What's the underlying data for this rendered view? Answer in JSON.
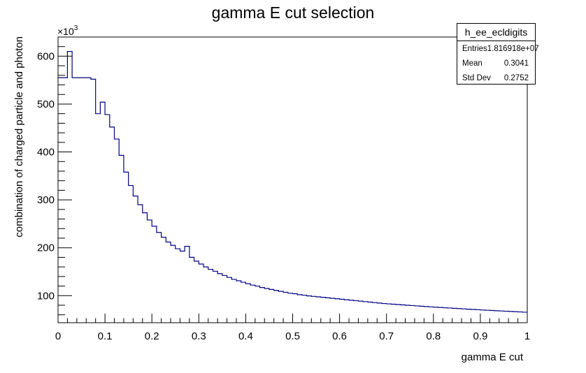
{
  "chart_data": {
    "type": "histogram",
    "title": "gamma E cut selection",
    "xlabel": "gamma E cut",
    "ylabel": "combination of charged particle and photon",
    "y_multiplier_label": "×10",
    "y_multiplier_exponent": "3",
    "xlim": [
      0,
      1
    ],
    "ylim": [
      43.5,
      640
    ],
    "x_ticks": [
      "0",
      "0.1",
      "0.2",
      "0.3",
      "0.4",
      "0.5",
      "0.6",
      "0.7",
      "0.8",
      "0.9",
      "1"
    ],
    "y_ticks": [
      "100",
      "200",
      "300",
      "400",
      "500",
      "600"
    ],
    "bin_width": 0.01,
    "values": [
      555,
      555,
      610,
      555,
      555,
      555,
      555,
      552,
      480,
      504,
      478,
      452,
      427,
      393,
      358,
      330,
      308,
      290,
      273,
      258,
      245,
      232,
      222,
      212,
      205,
      198,
      193,
      203,
      180,
      172,
      166,
      160,
      155,
      151,
      146,
      142,
      138,
      134,
      131,
      128,
      125,
      122,
      120,
      117,
      115,
      113,
      111,
      109,
      107,
      105,
      104,
      102,
      101,
      99.5,
      98.5,
      97.5,
      96.5,
      95.5,
      94.5,
      93.5,
      92.5,
      91.5,
      90.5,
      89.5,
      88.5,
      87.5,
      86.5,
      85.5,
      84.5,
      83.5,
      82.8,
      82.1,
      81.4,
      80.7,
      80.0,
      79.3,
      78.6,
      77.9,
      77.2,
      76.6,
      76.0,
      75.4,
      74.8,
      74.2,
      73.6,
      73.0,
      72.4,
      71.8,
      71.2,
      70.6,
      70.0,
      69.5,
      69.0,
      68.5,
      68.0,
      67.5,
      67.0,
      66.5,
      66.0,
      65.5
    ],
    "line_color": "#000080",
    "grid": false,
    "legend": "none"
  },
  "stats_box": {
    "title": "h_ee_ecldigits",
    "rows": [
      {
        "label": "Entries",
        "value": "1.816918e+07"
      },
      {
        "label": "Mean",
        "value": "0.3041"
      },
      {
        "label": "Std Dev",
        "value": "0.2752"
      }
    ]
  }
}
